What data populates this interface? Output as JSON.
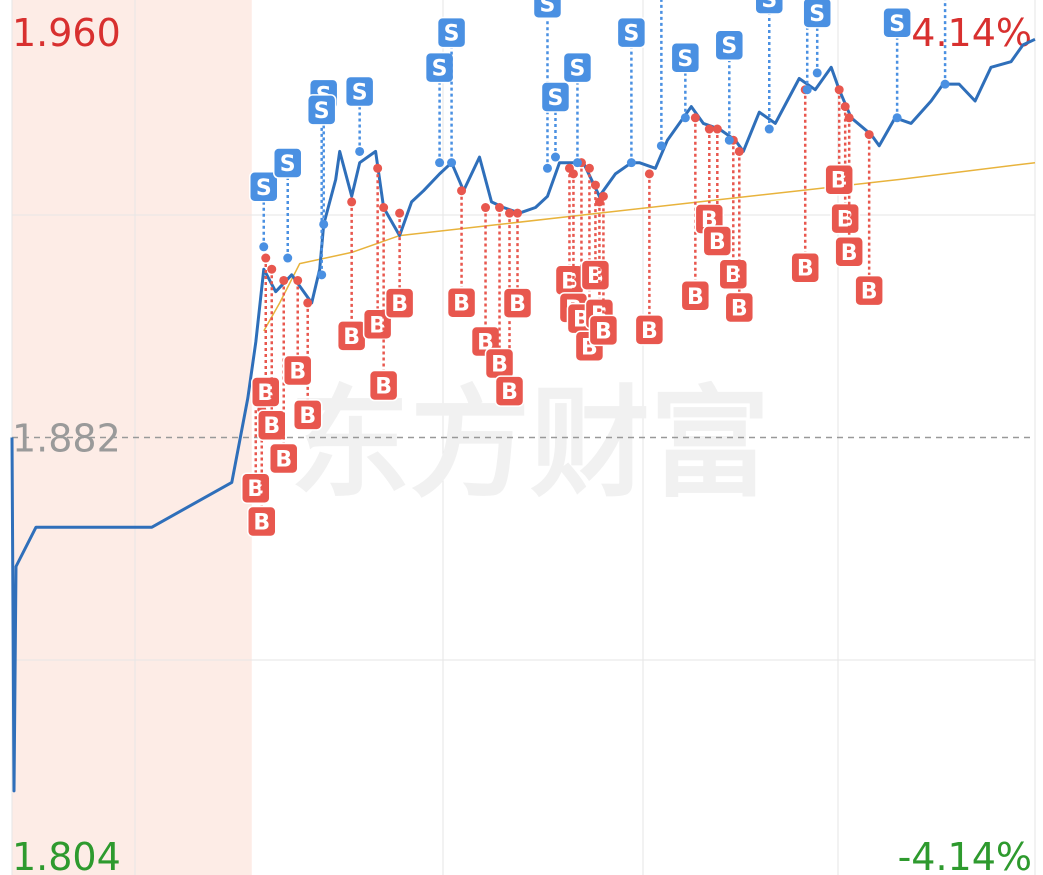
{
  "chart_data": {
    "type": "line",
    "watermark": "东方财富",
    "xlim": [
      0,
      256
    ],
    "ylim": [
      1.804,
      1.96
    ],
    "yticks": [
      {
        "value": 1.96,
        "label": "1.960"
      },
      {
        "value": 1.882,
        "label": "1.882"
      },
      {
        "value": 1.804,
        "label": "1.804"
      }
    ],
    "y2lim": [
      -4.14,
      4.14
    ],
    "y2ticks": [
      {
        "value": 4.14,
        "label": "4.14%"
      },
      {
        "value": -4.14,
        "label": "-4.14%"
      }
    ],
    "shaded_xlim": [
      0,
      60
    ],
    "series": [
      {
        "color": "#2f6fba",
        "x": [
          0,
          0.5,
          1,
          6,
          35,
          45,
          55,
          59,
          61,
          63,
          66,
          70,
          72,
          75,
          77,
          78,
          81,
          82,
          85,
          87,
          91,
          93,
          97,
          100,
          103,
          107,
          110,
          113,
          117,
          120,
          123,
          127,
          131,
          134,
          137,
          141,
          143,
          147,
          151,
          155,
          157,
          161,
          164,
          170,
          173,
          177,
          181,
          183,
          187,
          191,
          194,
          197,
          201,
          205,
          207,
          210,
          215,
          217,
          221,
          225,
          230,
          233,
          237,
          241,
          245,
          250,
          253,
          256
        ],
        "values": [
          1.882,
          1.819,
          1.859,
          1.866,
          1.866,
          1.87,
          1.874,
          1.889,
          1.899,
          1.912,
          1.908,
          1.911,
          1.909,
          1.906,
          1.912,
          1.92,
          1.928,
          1.933,
          1.925,
          1.931,
          1.933,
          1.923,
          1.918,
          1.924,
          1.926,
          1.929,
          1.931,
          1.926,
          1.932,
          1.924,
          1.923,
          1.922,
          1.923,
          1.925,
          1.931,
          1.931,
          1.931,
          1.925,
          1.929,
          1.931,
          1.931,
          1.93,
          1.935,
          1.941,
          1.938,
          1.937,
          1.935,
          1.933,
          1.94,
          1.938,
          1.942,
          1.946,
          1.944,
          1.948,
          1.944,
          1.939,
          1.936,
          1.934,
          1.939,
          1.938,
          1.942,
          1.945,
          1.945,
          1.942,
          1.948,
          1.949,
          1.952,
          1.953
        ]
      },
      {
        "color": "#e8b33c",
        "x": [
          63,
          67,
          72,
          85,
          97,
          122,
          147,
          172,
          197,
          222,
          256
        ],
        "values": [
          1.901,
          1.906,
          1.913,
          1.915,
          1.918,
          1.92,
          1.922,
          1.924,
          1.926,
          1.928,
          1.931
        ]
      }
    ],
    "markers": [
      {
        "label": "B",
        "x": 61,
        "y": 1.889
      },
      {
        "label": "B",
        "x": 62.5,
        "y": 1.887
      },
      {
        "label": "B",
        "x": 63.5,
        "y": 1.914
      },
      {
        "label": "B",
        "x": 65,
        "y": 1.912
      },
      {
        "label": "B",
        "x": 68,
        "y": 1.91
      },
      {
        "label": "B",
        "x": 71.5,
        "y": 1.91
      },
      {
        "label": "B",
        "x": 74,
        "y": 1.906
      },
      {
        "label": "B",
        "x": 85,
        "y": 1.924
      },
      {
        "label": "B",
        "x": 91.5,
        "y": 1.93
      },
      {
        "label": "B",
        "x": 93,
        "y": 1.923
      },
      {
        "label": "B",
        "x": 97,
        "y": 1.922
      },
      {
        "label": "B",
        "x": 112.5,
        "y": 1.926
      },
      {
        "label": "B",
        "x": 118.5,
        "y": 1.923
      },
      {
        "label": "B",
        "x": 122,
        "y": 1.923
      },
      {
        "label": "B",
        "x": 124.5,
        "y": 1.922
      },
      {
        "label": "B",
        "x": 126.5,
        "y": 1.922
      },
      {
        "label": "B",
        "x": 139.5,
        "y": 1.93
      },
      {
        "label": "B",
        "x": 140.5,
        "y": 1.929
      },
      {
        "label": "B",
        "x": 142.5,
        "y": 1.931
      },
      {
        "label": "B",
        "x": 144.5,
        "y": 1.93
      },
      {
        "label": "B",
        "x": 146,
        "y": 1.927
      },
      {
        "label": "B",
        "x": 147,
        "y": 1.924
      },
      {
        "label": "B",
        "x": 148,
        "y": 1.925
      },
      {
        "label": "B",
        "x": 159.5,
        "y": 1.929
      },
      {
        "label": "B",
        "x": 171,
        "y": 1.939
      },
      {
        "label": "B",
        "x": 174.5,
        "y": 1.937
      },
      {
        "label": "B",
        "x": 176.5,
        "y": 1.937
      },
      {
        "label": "B",
        "x": 180.5,
        "y": 1.935
      },
      {
        "label": "B",
        "x": 182,
        "y": 1.933
      },
      {
        "label": "B",
        "x": 198.5,
        "y": 1.944
      },
      {
        "label": "B",
        "x": 207,
        "y": 1.944
      },
      {
        "label": "B",
        "x": 208.5,
        "y": 1.941
      },
      {
        "label": "B",
        "x": 209.5,
        "y": 1.939
      },
      {
        "label": "B",
        "x": 214.5,
        "y": 1.936
      },
      {
        "label": "S",
        "x": 63,
        "y": 1.916
      },
      {
        "label": "S",
        "x": 69,
        "y": 1.914
      },
      {
        "label": "S",
        "x": 78,
        "y": 1.92
      },
      {
        "label": "S",
        "x": 77.5,
        "y": 1.911
      },
      {
        "label": "S",
        "x": 87,
        "y": 1.933
      },
      {
        "label": "S",
        "x": 107,
        "y": 1.931
      },
      {
        "label": "S",
        "x": 110,
        "y": 1.931
      },
      {
        "label": "S",
        "x": 134,
        "y": 1.93
      },
      {
        "label": "S",
        "x": 136,
        "y": 1.932
      },
      {
        "label": "S",
        "x": 141.5,
        "y": 1.931
      },
      {
        "label": "S",
        "x": 155,
        "y": 1.931
      },
      {
        "label": "S",
        "x": 162.5,
        "y": 1.934
      },
      {
        "label": "S",
        "x": 168.5,
        "y": 1.939
      },
      {
        "label": "S",
        "x": 179.5,
        "y": 1.935
      },
      {
        "label": "S",
        "x": 189.5,
        "y": 1.937
      },
      {
        "label": "S",
        "x": 199,
        "y": 1.944
      },
      {
        "label": "S",
        "x": 201.5,
        "y": 1.947
      },
      {
        "label": "S",
        "x": 221.5,
        "y": 1.939
      },
      {
        "label": "S",
        "x": 233.5,
        "y": 1.945
      }
    ]
  }
}
